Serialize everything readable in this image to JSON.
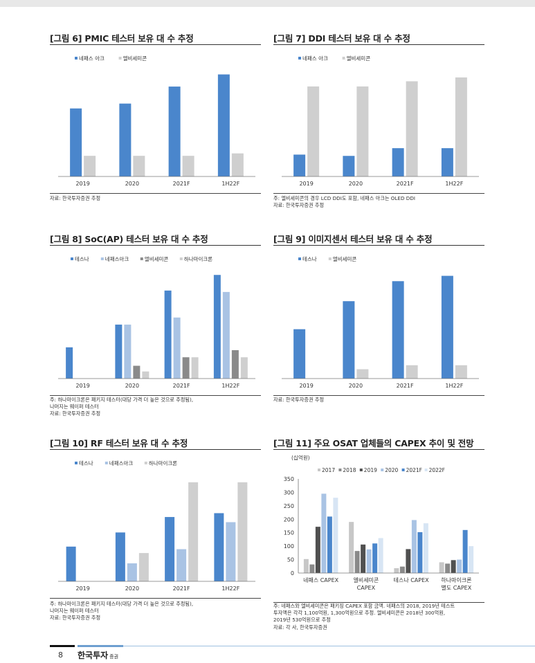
{
  "colors": {
    "blue": "#4a86cc",
    "lightgray": "#cfcfcf",
    "lightblue": "#a9c3e4",
    "darkgray": "#8a8a8a",
    "black": "#505050",
    "paleblue": "#d7e5f4"
  },
  "page": {
    "number": "8",
    "brand": "한국투자",
    "brand_suffix": "증권"
  },
  "charts": [
    {
      "title": "[그림 6] PMIC 테스터 보유 대 수 추정",
      "notes": [
        "자료: 한국투자증권 추정"
      ],
      "chart_data": {
        "type": "bar",
        "categories": [
          "2019",
          "2020",
          "2021F",
          "1H22F"
        ],
        "series": [
          {
            "name": "네패스 아크",
            "color": "#4a86cc",
            "values": [
              56,
              60,
              74,
              84
            ]
          },
          {
            "name": "엘비세미콘",
            "color": "#cfcfcf",
            "values": [
              17,
              17,
              17,
              19
            ]
          }
        ],
        "ylim": [
          0,
          90
        ]
      }
    },
    {
      "title": "[그림 7] DDI 테스터 보유 대 수 추정",
      "notes": [
        "주: 엘비세미콘의 경우 LCD DDI도 포함, 네패스 아크는 OLED DDI",
        "자료: 한국투자증권 추정"
      ],
      "chart_data": {
        "type": "bar",
        "categories": [
          "2019",
          "2020",
          "2021F",
          "1H22F"
        ],
        "series": [
          {
            "name": "네패스 아크",
            "color": "#4a86cc",
            "values": [
              17,
              16,
              22,
              22
            ]
          },
          {
            "name": "엘비세미콘",
            "color": "#cfcfcf",
            "values": [
              70,
              70,
              74,
              77
            ]
          }
        ],
        "ylim": [
          0,
          85
        ]
      }
    },
    {
      "title": "[그림 8] SoC(AP) 테스터 보유 대 수 추정",
      "notes": [
        "주: 하나마이크론은 패키지 테스터(대당 가격 더 높은 것으로 추정됨),",
        "     나머지는 웨이퍼 테스터",
        "자료: 한국투자증권 추정"
      ],
      "chart_data": {
        "type": "bar",
        "categories": [
          "2019",
          "2020",
          "2021F",
          "1H22F"
        ],
        "series": [
          {
            "name": "테스나",
            "color": "#4a86cc",
            "values": [
              22,
              38,
              62,
              73
            ]
          },
          {
            "name": "네패스아크",
            "color": "#a9c3e4",
            "values": [
              0,
              38,
              43,
              61
            ]
          },
          {
            "name": "엘비세미콘",
            "color": "#8a8a8a",
            "values": [
              0,
              9,
              15,
              20
            ]
          },
          {
            "name": "하나마이크론",
            "color": "#cfcfcf",
            "values": [
              0,
              5,
              15,
              15
            ]
          }
        ],
        "ylim": [
          0,
          78
        ]
      }
    },
    {
      "title": "[그림 9] 이미지센서 테스터 보유 대 수 추정",
      "notes": [
        "자료: 한국투자증권 추정"
      ],
      "chart_data": {
        "type": "bar",
        "categories": [
          "2019",
          "2020",
          "2021F",
          "1H22F"
        ],
        "series": [
          {
            "name": "테스나",
            "color": "#4a86cc",
            "values": [
              37,
              58,
              73,
              77
            ]
          },
          {
            "name": "엘비세미콘",
            "color": "#cfcfcf",
            "values": [
              0,
              7,
              10,
              10
            ]
          }
        ],
        "ylim": [
          0,
          83
        ]
      }
    },
    {
      "title": "[그림 10] RF 테스터 보유 대 수 추정",
      "notes": [
        "주: 하나마이크론은 패키지 테스터(대당 가격 더 높은 것으로 추정됨),",
        "     나머지는 웨이퍼 테스터",
        "자료: 한국투자증권 추정"
      ],
      "chart_data": {
        "type": "bar",
        "categories": [
          "2019",
          "2020",
          "2021F",
          "1H22F"
        ],
        "series": [
          {
            "name": "테스나",
            "color": "#4a86cc",
            "values": [
              27,
              38,
              50,
              53
            ]
          },
          {
            "name": "네패스아크",
            "color": "#a9c3e4",
            "values": [
              0,
              14,
              25,
              46
            ]
          },
          {
            "name": "하나마이크론",
            "color": "#cfcfcf",
            "values": [
              0,
              22,
              77,
              77
            ]
          }
        ],
        "ylim": [
          0,
          85
        ]
      }
    },
    {
      "title": "[그림 11] 주요 OSAT 업체들의 CAPEX 추이 및 전망",
      "notes": [
        "주: 네패스와 엘비세미콘은 패키징 CAPEX 포함 금액. 네패스의 2018, 2019년 테스트",
        "     투자액은 각각 1,100억원, 1,300억원으로 추정. 엘비세미콘은 2018년 300억원,",
        "     2019년 530억원으로 추정",
        "자료: 각 사, 한국투자증권"
      ],
      "chart_data": {
        "type": "bar",
        "unit": "(십억원)",
        "categories": [
          "네패스 CAPEX",
          "엘비세미콘\nCAPEX",
          "테스나 CAPEX",
          "하나마이크론\n별도 CAPEX"
        ],
        "yticks": [
          0,
          50,
          100,
          150,
          200,
          250,
          300,
          350
        ],
        "ylim": [
          0,
          350
        ],
        "series": [
          {
            "name": "2017",
            "color": "#c7c7c7",
            "values": [
              52,
              190,
              18,
              40
            ]
          },
          {
            "name": "2018",
            "color": "#8a8a8a",
            "values": [
              32,
              82,
              24,
              35
            ]
          },
          {
            "name": "2019",
            "color": "#505050",
            "values": [
              172,
              106,
              89,
              48
            ]
          },
          {
            "name": "2020",
            "color": "#a9c3e4",
            "values": [
              295,
              88,
              197,
              50
            ]
          },
          {
            "name": "2021F",
            "color": "#4a86cc",
            "values": [
              210,
              110,
              152,
              160
            ]
          },
          {
            "name": "2022F",
            "color": "#d7e5f4",
            "values": [
              280,
              130,
              185,
              100
            ]
          }
        ]
      }
    }
  ]
}
